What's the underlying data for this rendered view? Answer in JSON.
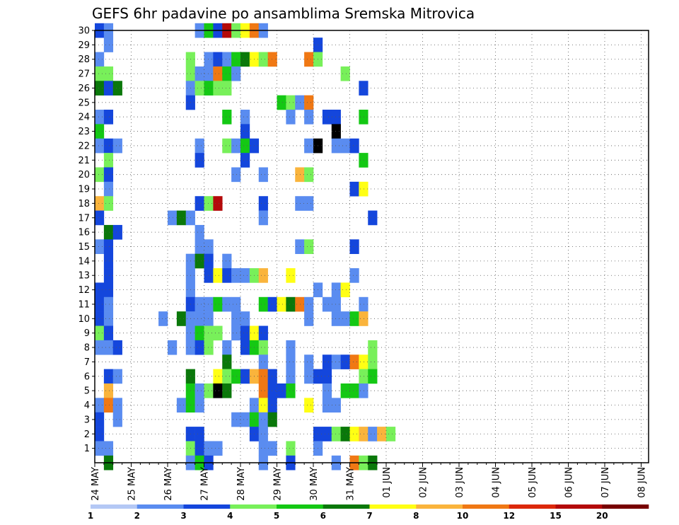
{
  "chart_data": {
    "type": "heatmap",
    "title": "GEFS 6hr padavine po ansamblima Sremska Mitrovica",
    "xlabel": "",
    "ylabel": "",
    "x_ticks": [
      "24 MAY",
      "25 MAY",
      "26 MAY",
      "27 MAY",
      "28 MAY",
      "29 MAY",
      "30 MAY",
      "31 MAY",
      "01 JUN",
      "02 JUN",
      "03 JUN",
      "04 JUN",
      "05 JUN",
      "06 JUN",
      "07 JUN",
      "08 JUN"
    ],
    "y_ticks": [
      "1",
      "2",
      "3",
      "4",
      "5",
      "6",
      "7",
      "8",
      "9",
      "10",
      "11",
      "12",
      "13",
      "14",
      "15",
      "16",
      "17",
      "18",
      "19",
      "20",
      "21",
      "22",
      "23",
      "24",
      "25",
      "26",
      "27",
      "28",
      "29",
      "30"
    ],
    "y_range": [
      0,
      30
    ],
    "x_steps_per_day": 4,
    "grid": "dotted",
    "colorbar": {
      "levels": [
        "1",
        "2",
        "3",
        "4",
        "5",
        "6",
        "7",
        "8",
        "10",
        "12",
        "15",
        "20"
      ],
      "colors": [
        "#b4c8f5",
        "#5a8cf0",
        "#1446dc",
        "#78f05a",
        "#14c814",
        "#0a780a",
        "#ffff14",
        "#fab43c",
        "#f07814",
        "#dc280a",
        "#b40a0a",
        "#780000"
      ]
    },
    "cells": [
      [
        30,
        0,
        2
      ],
      [
        30,
        1,
        1
      ],
      [
        30,
        11,
        1
      ],
      [
        30,
        12,
        4
      ],
      [
        30,
        13,
        2
      ],
      [
        30,
        14,
        10
      ],
      [
        30,
        15,
        3
      ],
      [
        30,
        16,
        6
      ],
      [
        30,
        17,
        8
      ],
      [
        30,
        18,
        1
      ],
      [
        29,
        1,
        1
      ],
      [
        29,
        24,
        2
      ],
      [
        28,
        0,
        1
      ],
      [
        28,
        10,
        3
      ],
      [
        28,
        12,
        1
      ],
      [
        28,
        13,
        2
      ],
      [
        28,
        14,
        1
      ],
      [
        28,
        15,
        4
      ],
      [
        28,
        16,
        5
      ],
      [
        28,
        17,
        6
      ],
      [
        28,
        18,
        3
      ],
      [
        28,
        19,
        8
      ],
      [
        28,
        23,
        8
      ],
      [
        28,
        24,
        3
      ],
      [
        27,
        0,
        3
      ],
      [
        27,
        1,
        3
      ],
      [
        27,
        10,
        3
      ],
      [
        27,
        11,
        1
      ],
      [
        27,
        12,
        1
      ],
      [
        27,
        13,
        8
      ],
      [
        27,
        14,
        4
      ],
      [
        27,
        15,
        1
      ],
      [
        27,
        27,
        3
      ],
      [
        26,
        0,
        5
      ],
      [
        26,
        1,
        2
      ],
      [
        26,
        2,
        5
      ],
      [
        26,
        10,
        1
      ],
      [
        26,
        11,
        3
      ],
      [
        26,
        12,
        4
      ],
      [
        26,
        13,
        3
      ],
      [
        26,
        14,
        3
      ],
      [
        26,
        29,
        2
      ],
      [
        25,
        10,
        2
      ],
      [
        25,
        20,
        4
      ],
      [
        25,
        21,
        3
      ],
      [
        25,
        22,
        1
      ],
      [
        25,
        23,
        8
      ],
      [
        24,
        0,
        1
      ],
      [
        24,
        1,
        2
      ],
      [
        24,
        14,
        4
      ],
      [
        24,
        16,
        1
      ],
      [
        24,
        21,
        1
      ],
      [
        24,
        23,
        1
      ],
      [
        24,
        25,
        2
      ],
      [
        24,
        26,
        2
      ],
      [
        24,
        29,
        4
      ],
      [
        23,
        0,
        4
      ],
      [
        23,
        16,
        2
      ],
      [
        23,
        26,
        12
      ],
      [
        22,
        0,
        1
      ],
      [
        22,
        1,
        2
      ],
      [
        22,
        2,
        1
      ],
      [
        22,
        11,
        1
      ],
      [
        22,
        14,
        3
      ],
      [
        22,
        15,
        1
      ],
      [
        22,
        16,
        4
      ],
      [
        22,
        17,
        2
      ],
      [
        22,
        23,
        1
      ],
      [
        22,
        24,
        15
      ],
      [
        22,
        26,
        1
      ],
      [
        22,
        27,
        1
      ],
      [
        22,
        28,
        2
      ],
      [
        21,
        1,
        3
      ],
      [
        21,
        11,
        2
      ],
      [
        21,
        16,
        2
      ],
      [
        21,
        29,
        4
      ],
      [
        20,
        0,
        3
      ],
      [
        20,
        1,
        2
      ],
      [
        20,
        15,
        1
      ],
      [
        20,
        18,
        1
      ],
      [
        20,
        22,
        7
      ],
      [
        20,
        23,
        3
      ],
      [
        19,
        1,
        1
      ],
      [
        19,
        28,
        2
      ],
      [
        19,
        29,
        6
      ],
      [
        18,
        0,
        7
      ],
      [
        18,
        1,
        3
      ],
      [
        18,
        11,
        2
      ],
      [
        18,
        12,
        3
      ],
      [
        18,
        13,
        10
      ],
      [
        18,
        18,
        2
      ],
      [
        18,
        22,
        1
      ],
      [
        18,
        23,
        1
      ],
      [
        17,
        0,
        2
      ],
      [
        17,
        8,
        1
      ],
      [
        17,
        9,
        5
      ],
      [
        17,
        10,
        1
      ],
      [
        17,
        18,
        1
      ],
      [
        17,
        30,
        2
      ],
      [
        16,
        1,
        5
      ],
      [
        16,
        2,
        2
      ],
      [
        16,
        11,
        1
      ],
      [
        15,
        0,
        1
      ],
      [
        15,
        1,
        2
      ],
      [
        15,
        11,
        1
      ],
      [
        15,
        12,
        1
      ],
      [
        15,
        22,
        1
      ],
      [
        15,
        23,
        3
      ],
      [
        15,
        28,
        2
      ],
      [
        14,
        1,
        2
      ],
      [
        14,
        10,
        1
      ],
      [
        14,
        11,
        5
      ],
      [
        14,
        12,
        2
      ],
      [
        14,
        14,
        1
      ],
      [
        13,
        1,
        2
      ],
      [
        13,
        10,
        1
      ],
      [
        13,
        12,
        2
      ],
      [
        13,
        13,
        6
      ],
      [
        13,
        14,
        2
      ],
      [
        13,
        15,
        1
      ],
      [
        13,
        16,
        1
      ],
      [
        13,
        17,
        3
      ],
      [
        13,
        18,
        7
      ],
      [
        13,
        21,
        6
      ],
      [
        13,
        28,
        1
      ],
      [
        12,
        0,
        2
      ],
      [
        12,
        1,
        2
      ],
      [
        12,
        10,
        1
      ],
      [
        12,
        24,
        1
      ],
      [
        12,
        26,
        1
      ],
      [
        12,
        27,
        6
      ],
      [
        11,
        0,
        2
      ],
      [
        11,
        1,
        1
      ],
      [
        11,
        10,
        2
      ],
      [
        11,
        11,
        1
      ],
      [
        11,
        12,
        1
      ],
      [
        11,
        13,
        4
      ],
      [
        11,
        14,
        1
      ],
      [
        11,
        15,
        1
      ],
      [
        11,
        18,
        4
      ],
      [
        11,
        19,
        2
      ],
      [
        11,
        20,
        6
      ],
      [
        11,
        21,
        5
      ],
      [
        11,
        22,
        8
      ],
      [
        11,
        23,
        1
      ],
      [
        11,
        25,
        1
      ],
      [
        11,
        26,
        1
      ],
      [
        11,
        29,
        1
      ],
      [
        10,
        0,
        2
      ],
      [
        10,
        1,
        1
      ],
      [
        10,
        7,
        1
      ],
      [
        10,
        9,
        5
      ],
      [
        10,
        10,
        1
      ],
      [
        10,
        11,
        1
      ],
      [
        10,
        12,
        1
      ],
      [
        10,
        15,
        1
      ],
      [
        10,
        16,
        1
      ],
      [
        10,
        23,
        1
      ],
      [
        10,
        26,
        1
      ],
      [
        10,
        27,
        1
      ],
      [
        10,
        28,
        4
      ],
      [
        10,
        29,
        7
      ],
      [
        9,
        0,
        3
      ],
      [
        9,
        1,
        2
      ],
      [
        9,
        10,
        1
      ],
      [
        9,
        11,
        4
      ],
      [
        9,
        12,
        3
      ],
      [
        9,
        13,
        3
      ],
      [
        9,
        15,
        1
      ],
      [
        9,
        16,
        2
      ],
      [
        9,
        17,
        6
      ],
      [
        9,
        18,
        2
      ],
      [
        8,
        0,
        1
      ],
      [
        8,
        1,
        1
      ],
      [
        8,
        2,
        2
      ],
      [
        8,
        8,
        1
      ],
      [
        8,
        10,
        1
      ],
      [
        8,
        11,
        2
      ],
      [
        8,
        12,
        3
      ],
      [
        8,
        14,
        1
      ],
      [
        8,
        16,
        2
      ],
      [
        8,
        17,
        4
      ],
      [
        8,
        18,
        3
      ],
      [
        8,
        21,
        1
      ],
      [
        8,
        30,
        3
      ],
      [
        7,
        14,
        5
      ],
      [
        7,
        18,
        1
      ],
      [
        7,
        21,
        1
      ],
      [
        7,
        23,
        1
      ],
      [
        7,
        25,
        2
      ],
      [
        7,
        26,
        1
      ],
      [
        7,
        27,
        2
      ],
      [
        7,
        28,
        8
      ],
      [
        7,
        29,
        6
      ],
      [
        7,
        30,
        3
      ],
      [
        6,
        1,
        2
      ],
      [
        6,
        2,
        1
      ],
      [
        6,
        10,
        5
      ],
      [
        6,
        13,
        6
      ],
      [
        6,
        14,
        3
      ],
      [
        6,
        15,
        4
      ],
      [
        6,
        16,
        2
      ],
      [
        6,
        17,
        7
      ],
      [
        6,
        18,
        8
      ],
      [
        6,
        19,
        2
      ],
      [
        6,
        21,
        1
      ],
      [
        6,
        23,
        1
      ],
      [
        6,
        24,
        2
      ],
      [
        6,
        25,
        2
      ],
      [
        6,
        29,
        3
      ],
      [
        6,
        30,
        4
      ],
      [
        5,
        1,
        7
      ],
      [
        5,
        10,
        4
      ],
      [
        5,
        11,
        1
      ],
      [
        5,
        12,
        3
      ],
      [
        5,
        13,
        15
      ],
      [
        5,
        14,
        5
      ],
      [
        5,
        18,
        8
      ],
      [
        5,
        19,
        2
      ],
      [
        5,
        20,
        2
      ],
      [
        5,
        21,
        4
      ],
      [
        5,
        25,
        1
      ],
      [
        5,
        27,
        4
      ],
      [
        5,
        28,
        4
      ],
      [
        5,
        29,
        1
      ],
      [
        4,
        0,
        1
      ],
      [
        4,
        1,
        8
      ],
      [
        4,
        2,
        1
      ],
      [
        4,
        9,
        1
      ],
      [
        4,
        10,
        4
      ],
      [
        4,
        11,
        1
      ],
      [
        4,
        17,
        1
      ],
      [
        4,
        18,
        6
      ],
      [
        4,
        19,
        2
      ],
      [
        4,
        23,
        6
      ],
      [
        4,
        25,
        1
      ],
      [
        4,
        26,
        1
      ],
      [
        3,
        0,
        2
      ],
      [
        3,
        2,
        1
      ],
      [
        3,
        15,
        1
      ],
      [
        3,
        16,
        1
      ],
      [
        3,
        17,
        4
      ],
      [
        3,
        18,
        1
      ],
      [
        3,
        19,
        5
      ],
      [
        2,
        0,
        2
      ],
      [
        2,
        10,
        2
      ],
      [
        2,
        11,
        2
      ],
      [
        2,
        17,
        2
      ],
      [
        2,
        18,
        1
      ],
      [
        2,
        24,
        2
      ],
      [
        2,
        25,
        2
      ],
      [
        2,
        26,
        3
      ],
      [
        2,
        27,
        5
      ],
      [
        2,
        28,
        6
      ],
      [
        2,
        29,
        7
      ],
      [
        2,
        30,
        1
      ],
      [
        2,
        31,
        7
      ],
      [
        2,
        32,
        3
      ],
      [
        1,
        0,
        1
      ],
      [
        1,
        1,
        1
      ],
      [
        1,
        10,
        3
      ],
      [
        1,
        11,
        2
      ],
      [
        1,
        12,
        1
      ],
      [
        1,
        13,
        1
      ],
      [
        1,
        18,
        1
      ],
      [
        1,
        19,
        1
      ],
      [
        1,
        21,
        3
      ],
      [
        1,
        24,
        1
      ],
      [
        0,
        1,
        5
      ],
      [
        0,
        10,
        1
      ],
      [
        0,
        11,
        4
      ],
      [
        0,
        12,
        2
      ],
      [
        0,
        18,
        1
      ],
      [
        0,
        21,
        2
      ],
      [
        0,
        26,
        1
      ],
      [
        0,
        28,
        8
      ],
      [
        0,
        29,
        3
      ],
      [
        0,
        30,
        5
      ]
    ]
  }
}
